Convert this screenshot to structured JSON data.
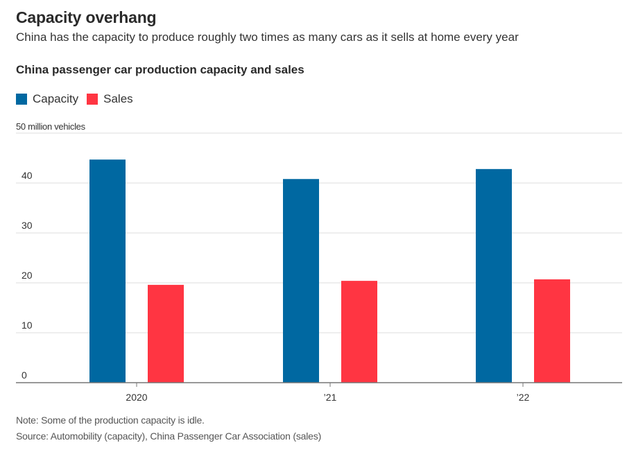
{
  "header": {
    "title": "Capacity overhang",
    "subtitle": "China has the capacity to produce roughly two times as many cars as it sells at home every year"
  },
  "chart_data": {
    "type": "bar",
    "title": "China passenger car production capacity and sales",
    "xlabel": "",
    "ylabel": "million vehicles",
    "unit_label": "50 million vehicles",
    "categories": [
      "2020",
      "’21",
      "’22"
    ],
    "series": [
      {
        "name": "Capacity",
        "color": "#0068a1",
        "values": [
          44.7,
          40.8,
          42.8
        ]
      },
      {
        "name": "Sales",
        "color": "#ff3542",
        "values": [
          19.6,
          20.4,
          20.7
        ]
      }
    ],
    "ylim": [
      0,
      50
    ],
    "yticks": [
      0,
      10,
      20,
      30,
      40,
      50
    ],
    "ytick_labels": [
      "0",
      "10",
      "20",
      "30",
      "40",
      ""
    ],
    "grid": true,
    "legend_position": "top-left"
  },
  "footer": {
    "note": "Note: Some of the production capacity is idle.",
    "source": "Source: Automobility (capacity), China Passenger Car Association (sales)"
  }
}
